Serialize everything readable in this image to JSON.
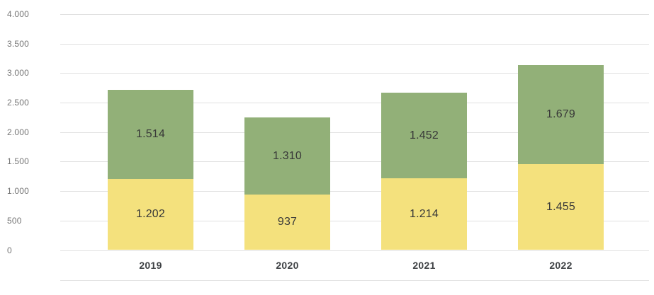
{
  "chart_data": {
    "type": "bar",
    "variant": "stacked",
    "title": "",
    "categories": [
      "2019",
      "2020",
      "2021",
      "2022"
    ],
    "series": [
      {
        "name": "bottom",
        "color": "#f4e17d",
        "values": [
          1202,
          937,
          1214,
          1455
        ],
        "labels": [
          "1.202",
          "937",
          "1.214",
          "1.455"
        ]
      },
      {
        "name": "top",
        "color": "#92b078",
        "values": [
          1514,
          1310,
          1452,
          1679
        ],
        "labels": [
          "1.514",
          "1.310",
          "1.452",
          "1.679"
        ]
      }
    ],
    "y_axis": {
      "min": 0,
      "max": 4000,
      "tick_step": 500,
      "tick_labels": [
        "0",
        "500",
        "1.000",
        "1.500",
        "2.000",
        "2.500",
        "3.000",
        "3.500",
        "4.000"
      ]
    },
    "x_axis": {
      "tick_labels": [
        "2019",
        "2020",
        "2021",
        "2022"
      ]
    },
    "grid": "horizontal",
    "legend": "none",
    "number_format": "thousands-dot"
  },
  "colors": {
    "series_bottom": "#f4e17d",
    "series_top": "#92b078",
    "gridline": "#e1e1e1",
    "axis_label": "#757575",
    "category_label": "#3f4245",
    "value_label": "#383838",
    "background": "#ffffff"
  }
}
